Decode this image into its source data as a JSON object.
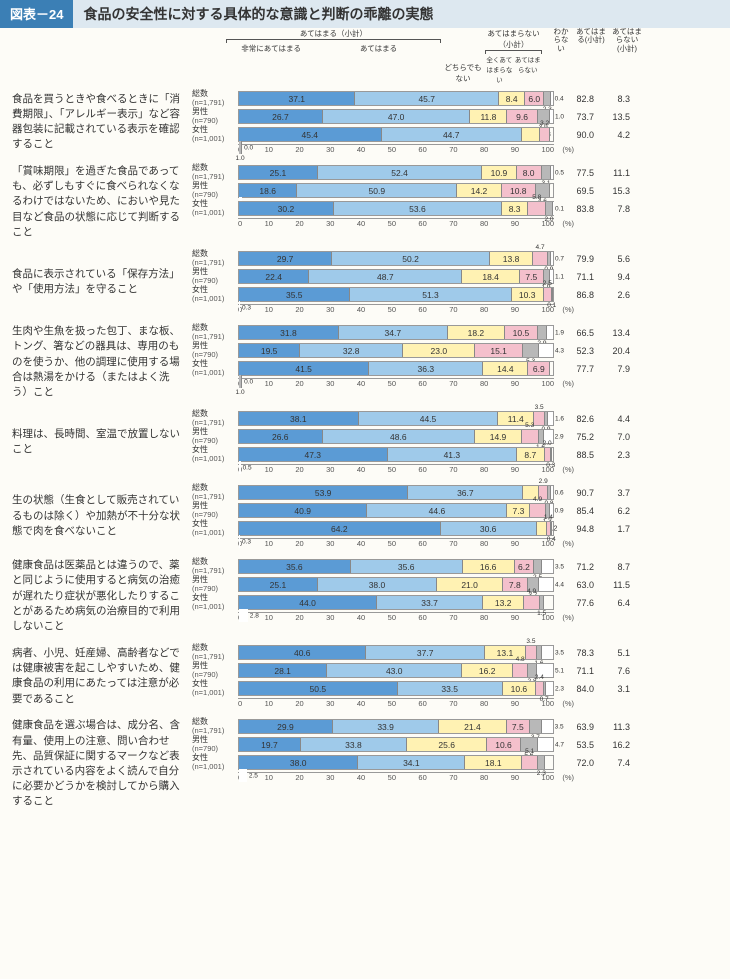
{
  "title_tag": "図表－24",
  "title_text": "食品の安全性に対する具体的な意識と判断の乖離の実態",
  "legend_top_left": "あてはまる（小計）",
  "legend_top_right": "あてはまらない（小計）",
  "col_labels": [
    "非常にあてはまる",
    "あてはまる",
    "どちらでもない",
    "あてはまらない",
    "全くあてはまらない",
    "わからない"
  ],
  "right_headers": [
    "あてはまる(小計)",
    "あてはまらない(小計)"
  ],
  "axis_ticks": [
    "0",
    "10",
    "20",
    "30",
    "40",
    "50",
    "60",
    "70",
    "80",
    "90",
    "100"
  ],
  "colors": {
    "c1": "#5b9bd5",
    "c2": "#9fcaea",
    "c3": "#fff2b3",
    "c4": "#f4c0cc",
    "c5": "#b8b8b8",
    "c6": "#ffffff",
    "border": "#888"
  },
  "row_group_labels": [
    {
      "label": "総数",
      "n": "(n=1,791)"
    },
    {
      "label": "男性",
      "n": "(n=790)"
    },
    {
      "label": "女性",
      "n": "(n=1,001)"
    }
  ],
  "questions": [
    {
      "text": "食品を買うときや食べるときに「消費期限」、「アレルギー表示」など容器包装に記載されている表示を確認すること",
      "rows": [
        {
          "vals": [
            37.1,
            45.7,
            8.4,
            6.0,
            2.3,
            0.4
          ],
          "r": [
            82.8,
            8.3
          ]
        },
        {
          "vals": [
            26.7,
            47.0,
            11.8,
            9.6,
            3.9,
            1.0
          ],
          "r": [
            73.7,
            13.5
          ]
        },
        {
          "vals": [
            45.4,
            44.7,
            5.8,
            3.2,
            1.0,
            0.0
          ],
          "r": [
            90.0,
            4.2
          ]
        }
      ]
    },
    {
      "text": "「賞味期限」を過ぎた食品であっても、必ずしもすぐに食べられなくなるわけではないため、においや見た目など食品の状態に応じて判断すること",
      "rows": [
        {
          "vals": [
            25.1,
            52.4,
            10.9,
            8.0,
            3.1,
            0.5
          ],
          "r": [
            77.5,
            11.1
          ]
        },
        {
          "vals": [
            18.6,
            50.9,
            14.2,
            10.8,
            4.6,
            1.0
          ],
          "r": [
            69.5,
            15.3
          ]
        },
        {
          "vals": [
            30.2,
            53.6,
            8.3,
            5.8,
            2.0,
            0.1
          ],
          "r": [
            83.8,
            7.8
          ]
        }
      ]
    },
    {
      "text": "食品に表示されている「保存方法」や「使用方法」を守ること",
      "rows": [
        {
          "vals": [
            29.7,
            50.2,
            13.8,
            4.7,
            0.9,
            0.7
          ],
          "r": [
            79.9,
            5.6
          ]
        },
        {
          "vals": [
            22.4,
            48.7,
            18.4,
            7.5,
            1.9,
            1.1
          ],
          "r": [
            71.1,
            9.4
          ]
        },
        {
          "vals": [
            35.5,
            51.3,
            10.3,
            2.5,
            0.1,
            0.3
          ],
          "r": [
            86.8,
            2.6
          ]
        }
      ]
    },
    {
      "text": "生肉や生魚を扱った包丁、まな板、トング、箸などの器具は、専用のものを使うか、他の調理に使用する場合は熱湯をかける（またはよく洗う）こと",
      "rows": [
        {
          "vals": [
            31.8,
            34.7,
            18.2,
            10.5,
            2.9,
            1.9
          ],
          "r": [
            66.5,
            13.4
          ]
        },
        {
          "vals": [
            19.5,
            32.8,
            23.0,
            15.1,
            5.3,
            4.3
          ],
          "r": [
            52.3,
            20.4
          ]
        },
        {
          "vals": [
            41.5,
            36.3,
            14.4,
            6.9,
            1.0,
            0.0
          ],
          "r": [
            77.7,
            7.9
          ]
        }
      ]
    },
    {
      "text": "料理は、長時間、室温で放置しないこと",
      "rows": [
        {
          "vals": [
            38.1,
            44.5,
            11.4,
            3.5,
            0.9,
            1.6
          ],
          "r": [
            82.6,
            4.4
          ]
        },
        {
          "vals": [
            26.6,
            48.6,
            14.9,
            5.3,
            1.6,
            2.9
          ],
          "r": [
            75.2,
            7.0
          ]
        },
        {
          "vals": [
            47.3,
            41.3,
            8.7,
            2.0,
            0.3,
            0.5
          ],
          "r": [
            88.5,
            2.3
          ]
        }
      ]
    },
    {
      "text": "生の状態（生食として販売されているものは除く）や加熱が不十分な状態で肉を食べないこと",
      "rows": [
        {
          "vals": [
            53.9,
            36.7,
            5.0,
            2.9,
            0.8,
            0.6
          ],
          "r": [
            90.7,
            3.7
          ]
        },
        {
          "vals": [
            40.9,
            44.6,
            7.3,
            4.9,
            1.3,
            0.9
          ],
          "r": [
            85.4,
            6.2
          ]
        },
        {
          "vals": [
            64.2,
            30.6,
            3.2,
            1.4,
            0.4,
            0.3
          ],
          "r": [
            94.8,
            1.7
          ]
        }
      ]
    },
    {
      "text": "健康食品は医薬品とは違うので、薬と同じように使用すると病気の治癒が遅れたり症状が悪化したりすることがあるため病気の治療目的で利用しないこと",
      "rows": [
        {
          "vals": [
            35.6,
            35.6,
            16.6,
            6.2,
            2.5,
            3.5
          ],
          "r": [
            71.2,
            8.7
          ]
        },
        {
          "vals": [
            25.1,
            38.0,
            21.0,
            7.8,
            3.7,
            4.4
          ],
          "r": [
            63.0,
            11.5
          ]
        },
        {
          "vals": [
            44.0,
            33.7,
            13.2,
            4.9,
            1.5,
            2.8
          ],
          "r": [
            77.6,
            6.4
          ]
        }
      ]
    },
    {
      "text": "病者、小児、妊産婦、高齢者などでは健康被害を起こしやすいため、健康食品の利用にあたっては注意が必要であること",
      "rows": [
        {
          "vals": [
            40.6,
            37.7,
            13.1,
            3.5,
            1.6,
            3.5
          ],
          "r": [
            78.3,
            5.1
          ]
        },
        {
          "vals": [
            28.1,
            43.0,
            16.2,
            4.8,
            2.8,
            5.1
          ],
          "r": [
            71.1,
            7.6
          ]
        },
        {
          "vals": [
            50.5,
            33.5,
            10.6,
            2.4,
            0.7,
            2.3
          ],
          "r": [
            84.0,
            3.1
          ]
        }
      ]
    },
    {
      "text": "健康食品を選ぶ場合は、成分名、含有量、使用上の注意、問い合わせ先、品質保証に関するマークなど表示されている内容をよく読んで自分に必要かどうかを検討してから購入すること",
      "rows": [
        {
          "vals": [
            29.9,
            33.9,
            21.4,
            7.5,
            3.7,
            3.5
          ],
          "r": [
            63.9,
            11.3
          ]
        },
        {
          "vals": [
            19.7,
            33.8,
            25.6,
            10.6,
            5.6,
            4.7
          ],
          "r": [
            53.5,
            16.2
          ]
        },
        {
          "vals": [
            38.0,
            34.1,
            18.1,
            5.1,
            2.3,
            2.5
          ],
          "r": [
            72.0,
            7.4
          ]
        }
      ]
    }
  ]
}
